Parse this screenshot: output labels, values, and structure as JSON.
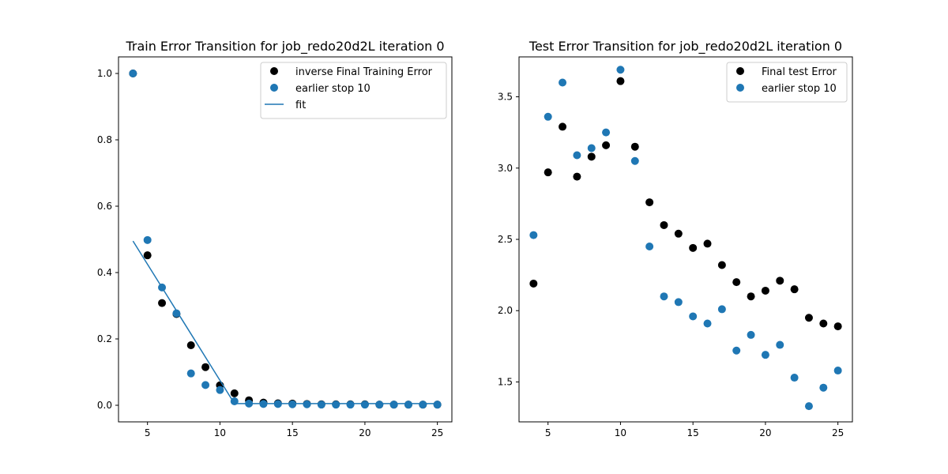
{
  "chart_data": [
    {
      "type": "scatter",
      "title": "Train Error Transition for job_redo20d2L iteration 0",
      "xlabel": "",
      "ylabel": "",
      "xlim": [
        3,
        26
      ],
      "ylim": [
        -0.05,
        1.05
      ],
      "xticks": [
        5,
        10,
        15,
        20,
        25
      ],
      "yticks": [
        0.0,
        0.2,
        0.4,
        0.6,
        0.8,
        1.0
      ],
      "grid": false,
      "legend_position": "top-right",
      "series": [
        {
          "name": "inverse Final Training Error",
          "kind": "scatter",
          "color": "#000000",
          "x": [
            4,
            5,
            6,
            7,
            8,
            9,
            10,
            11,
            12,
            13,
            14,
            15,
            16,
            17,
            18,
            19,
            20,
            21,
            22,
            23,
            24,
            25
          ],
          "y": [
            1.0,
            0.452,
            0.308,
            0.275,
            0.181,
            0.115,
            0.06,
            0.036,
            0.015,
            0.008,
            0.006,
            0.005,
            0.004,
            0.003,
            0.003,
            0.003,
            0.003,
            0.002,
            0.002,
            0.002,
            0.002,
            0.002
          ]
        },
        {
          "name": "earlier stop 10",
          "kind": "scatter",
          "color": "#1f77b4",
          "x": [
            4,
            5,
            6,
            7,
            8,
            9,
            10,
            11,
            12,
            13,
            14,
            15,
            16,
            17,
            18,
            19,
            20,
            21,
            22,
            23,
            24,
            25
          ],
          "y": [
            1.0,
            0.498,
            0.355,
            0.277,
            0.096,
            0.061,
            0.046,
            0.012,
            0.005,
            0.004,
            0.004,
            0.003,
            0.003,
            0.002,
            0.002,
            0.002,
            0.002,
            0.002,
            0.002,
            0.002,
            0.002,
            0.002
          ]
        },
        {
          "name": "fit",
          "kind": "line",
          "color": "#1f77b4",
          "x": [
            4,
            5,
            6,
            7,
            8,
            9,
            10,
            11,
            12,
            13,
            14,
            15,
            16,
            17,
            18,
            19,
            20,
            21,
            22,
            23,
            24,
            25
          ],
          "y": [
            0.495,
            0.425,
            0.355,
            0.285,
            0.215,
            0.145,
            0.075,
            0.005,
            0.005,
            0.005,
            0.005,
            0.005,
            0.005,
            0.005,
            0.005,
            0.005,
            0.005,
            0.005,
            0.005,
            0.005,
            0.005,
            0.005
          ]
        }
      ]
    },
    {
      "type": "scatter",
      "title": "Test Error Transition for job_redo20d2L iteration 0",
      "xlabel": "",
      "ylabel": "",
      "xlim": [
        3,
        26
      ],
      "ylim": [
        1.22,
        3.78
      ],
      "xticks": [
        5,
        10,
        15,
        20,
        25
      ],
      "yticks": [
        1.5,
        2.0,
        2.5,
        3.0,
        3.5
      ],
      "grid": false,
      "legend_position": "top-right",
      "series": [
        {
          "name": "Final test Error",
          "kind": "scatter",
          "color": "#000000",
          "x": [
            4,
            5,
            6,
            7,
            8,
            9,
            10,
            11,
            12,
            13,
            14,
            15,
            16,
            17,
            18,
            19,
            20,
            21,
            22,
            23,
            24,
            25
          ],
          "y": [
            2.19,
            2.97,
            3.29,
            2.94,
            3.08,
            3.16,
            3.61,
            3.15,
            2.76,
            2.6,
            2.54,
            2.44,
            2.47,
            2.32,
            2.2,
            2.1,
            2.14,
            2.21,
            2.15,
            1.95,
            1.91,
            1.89
          ]
        },
        {
          "name": "earlier stop 10",
          "kind": "scatter",
          "color": "#1f77b4",
          "x": [
            4,
            5,
            6,
            7,
            8,
            9,
            10,
            11,
            12,
            13,
            14,
            15,
            16,
            17,
            18,
            19,
            20,
            21,
            22,
            23,
            24,
            25
          ],
          "y": [
            2.53,
            3.36,
            3.6,
            3.09,
            3.14,
            3.25,
            3.69,
            3.05,
            2.45,
            2.1,
            2.06,
            1.96,
            1.91,
            2.01,
            1.72,
            1.83,
            1.69,
            1.76,
            1.53,
            1.33,
            1.46,
            1.58
          ]
        }
      ]
    }
  ]
}
